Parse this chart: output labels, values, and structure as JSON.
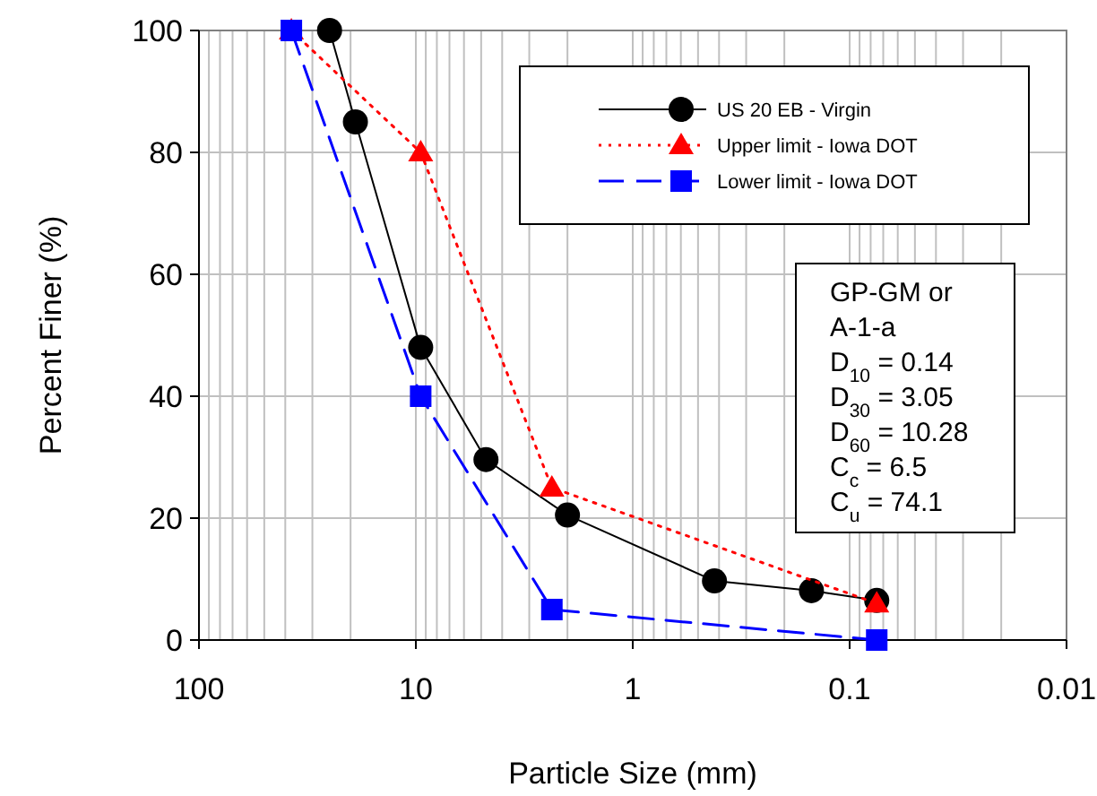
{
  "chart_data": {
    "type": "line",
    "xlabel": "Particle Size (mm)",
    "ylabel": "Percent Finer (%)",
    "log": "x",
    "xlim": [
      100,
      0.01
    ],
    "xticks": [
      100,
      10,
      1,
      0.1,
      0.01
    ],
    "ylim": [
      0,
      100
    ],
    "yticks": [
      0,
      20,
      40,
      60,
      80,
      100
    ],
    "grid": true,
    "legend": "top right",
    "series": [
      {
        "name": "US 20 EB - Virgin",
        "color": "#000000",
        "marker": "circle",
        "line_style": "solid",
        "x": [
          25,
          19,
          9.5,
          4.75,
          2.0,
          0.42,
          0.15,
          0.075
        ],
        "values": [
          100,
          85,
          48,
          29.6,
          20.5,
          9.7,
          8.1,
          6.5
        ]
      },
      {
        "name": "Upper limit - Iowa DOT",
        "color": "#ff0000",
        "marker": "triangle",
        "line_style": "dotted",
        "x": [
          37.5,
          9.5,
          2.36,
          0.075
        ],
        "values": [
          100,
          80,
          25,
          6
        ]
      },
      {
        "name": "Lower limit - Iowa DOT",
        "color": "#0000ff",
        "marker": "square",
        "line_style": "dashed",
        "x": [
          37.5,
          9.5,
          2.36,
          0.075
        ],
        "values": [
          100,
          40,
          5,
          0
        ]
      }
    ],
    "annotations": [
      "GP-GM or",
      "A-1-a",
      "D$_{10}$ = 0.14",
      "D$_{30}$ = 3.05",
      "D$_{60}$ = 10.28",
      "C$_{c}$ = 6.5",
      "C$_{u}$ = 74.1"
    ]
  }
}
